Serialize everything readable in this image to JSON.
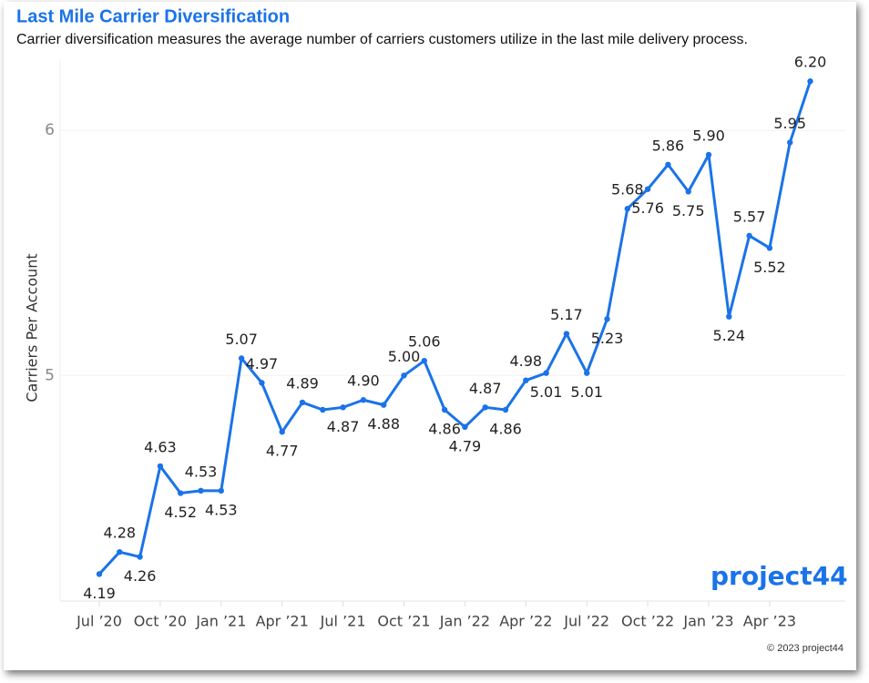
{
  "chart_data": {
    "type": "line",
    "title": "Last Mile Carrier Diversification",
    "subtitle": "Carrier diversification measures the average number of carriers customers utilize in the last mile delivery process.",
    "y_label": "Carriers Per Account",
    "categories": [
      "Jul ’20",
      null,
      null,
      "Oct ’20",
      null,
      null,
      "Jan ’21",
      null,
      null,
      "Apr ’21",
      null,
      null,
      "Jul ’21",
      null,
      null,
      "Oct ’21",
      null,
      null,
      "Jan ’22",
      null,
      null,
      "Apr ’22",
      null,
      null,
      "Jul ’22",
      null,
      null,
      "Oct ’22",
      null,
      null,
      "Jan ’23",
      null,
      null,
      "Apr ’23",
      null,
      null
    ],
    "series": [
      {
        "color": "#1a73e8",
        "values": [
          4.19,
          4.28,
          4.26,
          4.63,
          4.52,
          4.53,
          4.53,
          5.07,
          4.97,
          4.77,
          4.89,
          4.86,
          4.87,
          4.9,
          4.88,
          5.0,
          5.06,
          4.86,
          4.79,
          4.87,
          4.86,
          4.98,
          5.01,
          5.17,
          5.01,
          5.23,
          5.68,
          5.76,
          5.86,
          5.75,
          5.9,
          5.24,
          5.57,
          5.52,
          5.95,
          6.2
        ],
        "value_labels": [
          "4.19",
          "4.28",
          "4.26",
          "4.63",
          "4.52",
          "4.53",
          "4.53",
          "5.07",
          "4.97",
          "4.77",
          "4.89",
          null,
          "4.87",
          "4.90",
          "4.88",
          "5.00",
          "5.06",
          "4.86",
          "4.79",
          "4.87",
          "4.86",
          "4.98",
          "5.01",
          "5.17",
          "5.01",
          "5.23",
          "5.68",
          "5.76",
          "5.86",
          "5.75",
          "5.90",
          "5.24",
          "5.57",
          "5.52",
          "5.95",
          "6.20"
        ]
      }
    ],
    "ylim": [
      4.08,
      6.29
    ],
    "yticks": [
      5,
      6
    ],
    "grid": true
  },
  "copyright": "© 2023 project44",
  "logo": "project44"
}
